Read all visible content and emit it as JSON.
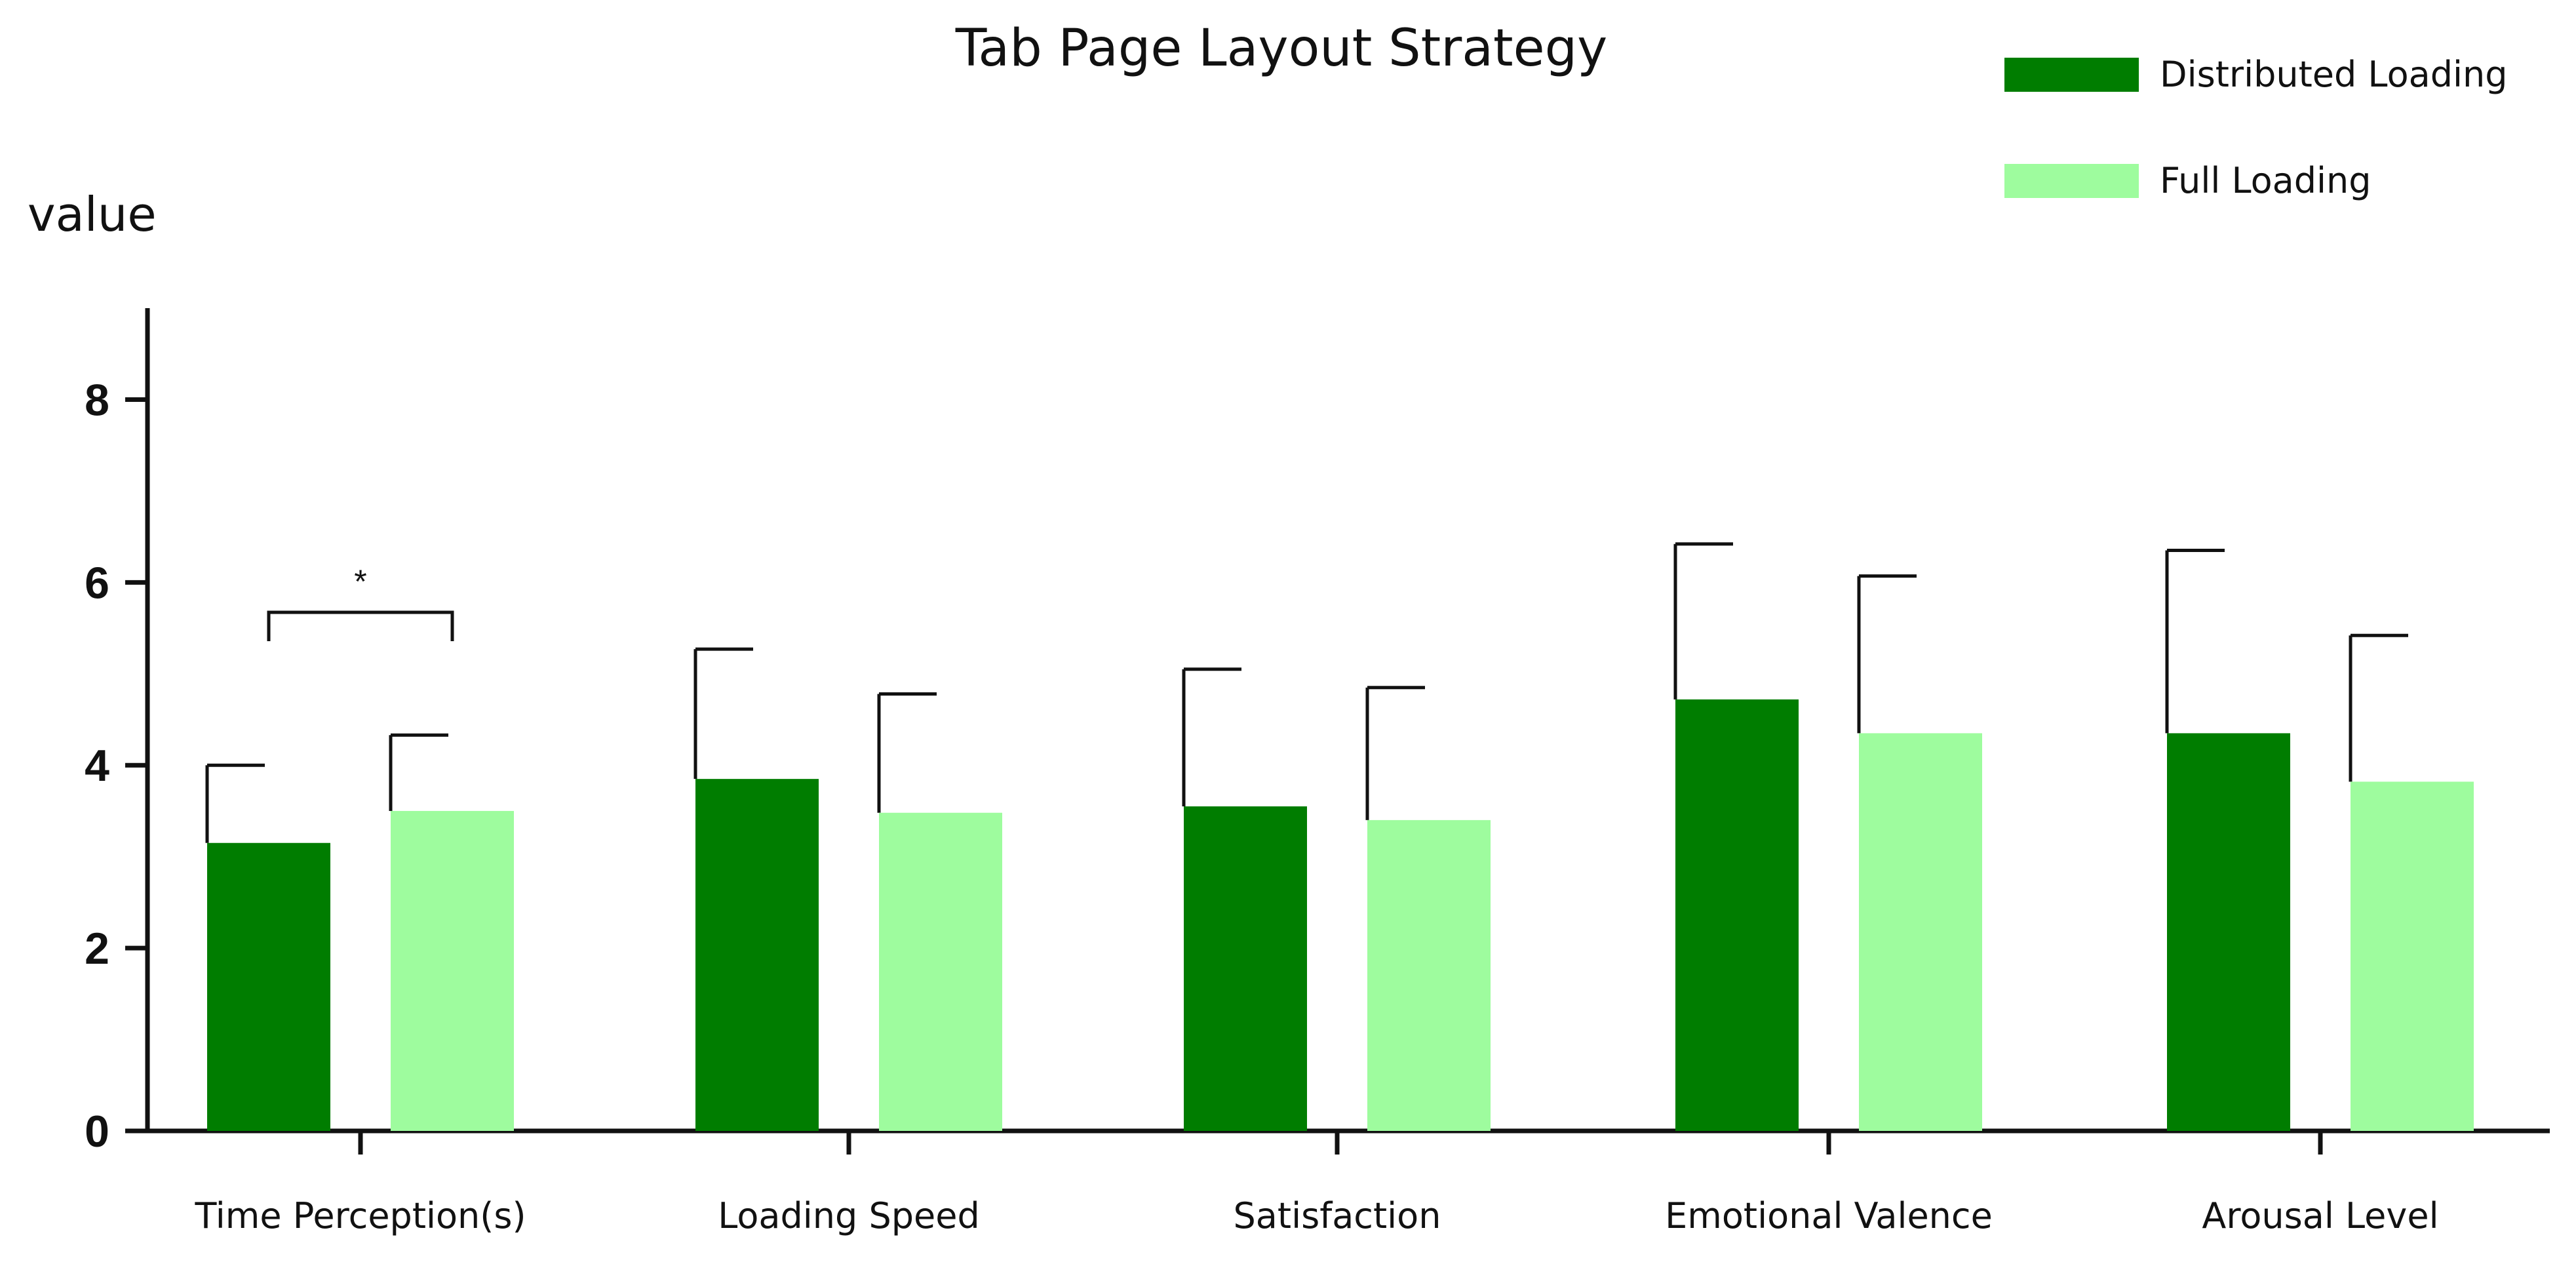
{
  "chart_data": {
    "type": "bar",
    "title": "Tab Page Layout Strategy",
    "xlabel": "",
    "ylabel": "value",
    "ylim": [
      0,
      9
    ],
    "yticks": [
      0,
      2,
      4,
      6,
      8
    ],
    "categories": [
      "Time Perception(s)",
      "Loading Speed",
      "Satisfaction",
      "Emotional Valence",
      "Arousal Level"
    ],
    "series": [
      {
        "name": "Distributed Loading",
        "color": "#007d00",
        "values": [
          3.15,
          3.85,
          3.55,
          4.72,
          4.35
        ],
        "errors": [
          0.85,
          1.42,
          1.5,
          1.7,
          2.0
        ]
      },
      {
        "name": "Full Loading",
        "color": "#9efc9e",
        "values": [
          3.5,
          3.48,
          3.4,
          4.35,
          3.82
        ],
        "errors": [
          0.83,
          1.3,
          1.45,
          1.72,
          1.6
        ]
      }
    ],
    "legend_position": "top-right",
    "grid": false,
    "annotations": [
      {
        "text": "*",
        "category_index": 0,
        "between_series": [
          0,
          1
        ]
      }
    ]
  }
}
